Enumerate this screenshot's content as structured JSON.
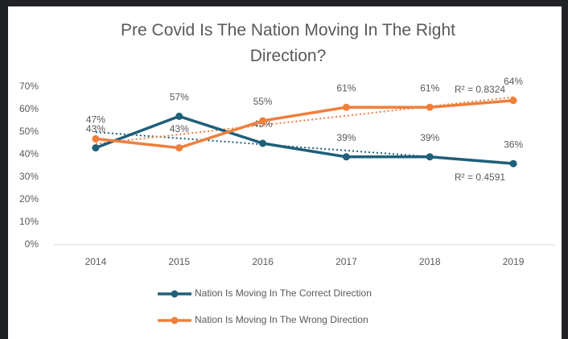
{
  "chart_data": {
    "type": "line",
    "title": "Pre Covid Is The Nation Moving In The Right Direction?",
    "categories": [
      "2014",
      "2015",
      "2016",
      "2017",
      "2018",
      "2019"
    ],
    "series": [
      {
        "name": "Nation Is Moving In The Correct Direction",
        "color": "#1f5f7a",
        "values": [
          43,
          57,
          45,
          39,
          39,
          36
        ],
        "value_labels": [
          "43%",
          "57%",
          "45%",
          "39%",
          "39%",
          "36%"
        ],
        "trendline": true,
        "trendline_label": "R² = 0.4591"
      },
      {
        "name": "Nation Is Moving In The Wrong Direction",
        "color": "#f07f3c",
        "values": [
          47,
          43,
          55,
          61,
          61,
          64
        ],
        "value_labels": [
          "47%",
          "43%",
          "55%",
          "61%",
          "61%",
          "64%"
        ],
        "trendline": true,
        "trendline_label": "R² = 0.8324"
      }
    ],
    "ylim": [
      0,
      70
    ],
    "yticks": [
      {
        "value": 0,
        "label": "0%"
      },
      {
        "value": 10,
        "label": "10%"
      },
      {
        "value": 20,
        "label": "20%"
      },
      {
        "value": 30,
        "label": "30%"
      },
      {
        "value": 40,
        "label": "40%"
      },
      {
        "value": 50,
        "label": "50%"
      },
      {
        "value": 60,
        "label": "60%"
      },
      {
        "value": 70,
        "label": "70%"
      }
    ],
    "grid": false,
    "legend": "bottom"
  }
}
